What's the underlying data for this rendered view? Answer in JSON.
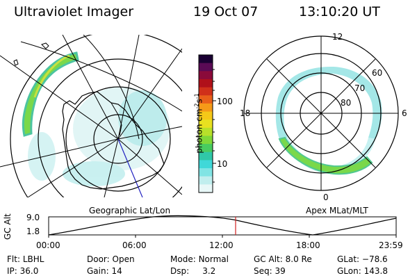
{
  "header": {
    "instrument": "Ultraviolet Imager",
    "date": "19 Oct 07",
    "time": "13:10:20 UT"
  },
  "left_map": {
    "caption": "Geographic Lat/Lon"
  },
  "right_map": {
    "caption": "Apex MLat/MLT",
    "mlt_labels": [
      "12",
      "18",
      "6",
      "0"
    ],
    "lat_labels": [
      "60",
      "70",
      "80"
    ]
  },
  "colorbar": {
    "unit_label": "photon cm",
    "unit_sup1": "-2",
    "unit_mid": "s",
    "unit_sup2": "-1",
    "tick_labels": [
      "100",
      "10"
    ],
    "colors": [
      "#1a0033",
      "#5a0a55",
      "#8a0a3a",
      "#b0101a",
      "#d0301a",
      "#e8601a",
      "#f59a18",
      "#f5c818",
      "#e8e020",
      "#b8e02a",
      "#80d838",
      "#48cc60",
      "#30c8a8",
      "#40d8d8",
      "#80e4e4",
      "#c0eeee",
      "#e8f8f8"
    ]
  },
  "timeline": {
    "axis_label": "GC Alt",
    "y_max": "9.0",
    "y_min": "1.8",
    "x_labels": [
      "00:00",
      "06:00",
      "12:00",
      "18:00",
      "23:59"
    ],
    "cursor_color": "#d02020"
  },
  "status": {
    "filter": {
      "label": "Flt:",
      "value": "LBHL"
    },
    "door": {
      "label": "Door:",
      "value": "Open"
    },
    "mode": {
      "label": "Mode:",
      "value": "Normal"
    },
    "gc_alt": {
      "label": "GC Alt:",
      "value": "8.0 Re"
    },
    "glat": {
      "label": "GLat:",
      "value": "−78.6"
    },
    "ip": {
      "label": "IP:",
      "value": "36.0"
    },
    "gain": {
      "label": "Gain:",
      "value": "14"
    },
    "dsp": {
      "label": "Dsp:",
      "value": "3.2"
    },
    "seq": {
      "label": "Seq:",
      "value": "39"
    },
    "glon": {
      "label": "GLon:",
      "value": "143.8"
    }
  }
}
